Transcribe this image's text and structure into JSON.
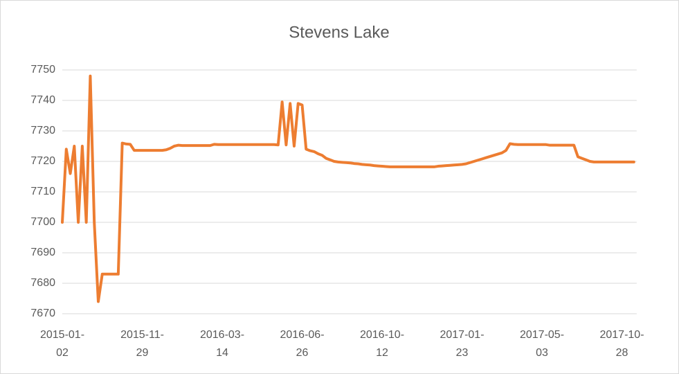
{
  "chart_data": {
    "type": "line",
    "title": "Stevens Lake",
    "categories": [
      "2015-01-02",
      null,
      null,
      null,
      null,
      null,
      null,
      null,
      null,
      null,
      null,
      null,
      null,
      null,
      null,
      null,
      null,
      null,
      null,
      null,
      "2015-11-29",
      null,
      null,
      null,
      null,
      null,
      null,
      null,
      null,
      null,
      null,
      null,
      null,
      null,
      null,
      null,
      null,
      null,
      null,
      null,
      "2016-03-14",
      null,
      null,
      null,
      null,
      null,
      null,
      null,
      null,
      null,
      null,
      null,
      null,
      null,
      null,
      null,
      null,
      null,
      null,
      null,
      "2016-06-26",
      null,
      null,
      null,
      null,
      null,
      null,
      null,
      null,
      null,
      null,
      null,
      null,
      null,
      null,
      null,
      null,
      null,
      null,
      null,
      "2016-10-12",
      null,
      null,
      null,
      null,
      null,
      null,
      null,
      null,
      null,
      null,
      null,
      null,
      null,
      null,
      null,
      null,
      null,
      null,
      null,
      "2017-01-23",
      null,
      null,
      null,
      null,
      null,
      null,
      null,
      null,
      null,
      null,
      null,
      null,
      null,
      null,
      null,
      null,
      null,
      null,
      null,
      "2017-05-03",
      null,
      null,
      null,
      null,
      null,
      null,
      null,
      null,
      null,
      null,
      null,
      null,
      null,
      null,
      null,
      null,
      null,
      null,
      null,
      "2017-10-28",
      null,
      null,
      null
    ],
    "values": [
      7700,
      7724,
      7716,
      7725,
      7700,
      7725,
      7700,
      7748,
      7700,
      7674,
      7683,
      7683,
      7683,
      7683,
      7683,
      7726,
      7725.7,
      7725.6,
      7723.6,
      7723.6,
      7723.6,
      7723.6,
      7723.6,
      7723.6,
      7723.6,
      7723.6,
      7723.8,
      7724.3,
      7725,
      7725.3,
      7725.2,
      7725.2,
      7725.2,
      7725.2,
      7725.2,
      7725.2,
      7725.2,
      7725.2,
      7725.6,
      7725.5,
      7725.5,
      7725.5,
      7725.5,
      7725.5,
      7725.5,
      7725.5,
      7725.5,
      7725.5,
      7725.5,
      7725.5,
      7725.5,
      7725.5,
      7725.5,
      7725.5,
      7725.4,
      7739.5,
      7725.4,
      7739,
      7725,
      7739,
      7738.5,
      7724,
      7723.5,
      7723.2,
      7722.5,
      7722,
      7721,
      7720.5,
      7720,
      7719.8,
      7719.7,
      7719.6,
      7719.5,
      7719.3,
      7719.2,
      7719,
      7718.9,
      7718.8,
      7718.6,
      7718.5,
      7718.4,
      7718.3,
      7718.2,
      7718.2,
      7718.2,
      7718.2,
      7718.2,
      7718.2,
      7718.2,
      7718.2,
      7718.2,
      7718.2,
      7718.2,
      7718.2,
      7718.4,
      7718.5,
      7718.6,
      7718.7,
      7718.8,
      7718.9,
      7719,
      7719.2,
      7719.6,
      7720,
      7720.4,
      7720.8,
      7721.2,
      7721.6,
      7722,
      7722.4,
      7722.8,
      7723.6,
      7725.8,
      7725.6,
      7725.5,
      7725.5,
      7725.5,
      7725.5,
      7725.5,
      7725.5,
      7725.5,
      7725.5,
      7725.3,
      7725.3,
      7725.3,
      7725.3,
      7725.3,
      7725.3,
      7725.3,
      7721.5,
      7721,
      7720.5,
      7720,
      7719.8,
      7719.8,
      7719.8,
      7719.8,
      7719.8,
      7719.8,
      7719.8,
      7719.8,
      7719.8,
      7719.8,
      7719.8
    ],
    "color": "#ED7D31",
    "ylim": [
      7670,
      7750
    ],
    "yticks": [
      7670,
      7680,
      7690,
      7700,
      7710,
      7720,
      7730,
      7740,
      7750
    ],
    "grid": true
  }
}
